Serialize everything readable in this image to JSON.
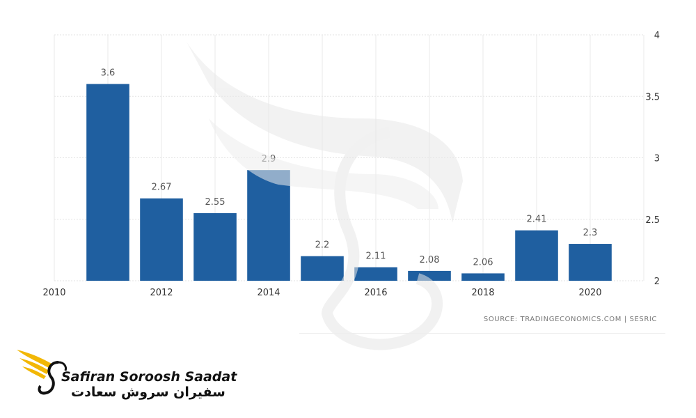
{
  "chart_data": {
    "type": "bar",
    "categories": [
      "2011",
      "2012",
      "2013",
      "2014",
      "2015",
      "2016",
      "2017",
      "2018",
      "2019",
      "2020"
    ],
    "values": [
      3.6,
      2.67,
      2.55,
      2.9,
      2.2,
      2.11,
      2.08,
      2.06,
      2.41,
      2.3
    ],
    "data_labels": [
      "3.6",
      "2.67",
      "2.55",
      "2.9",
      "2.2",
      "2.11",
      "2.08",
      "2.06",
      "2.41",
      "2.3"
    ],
    "x_tick_labels": [
      "2010",
      "2012",
      "2014",
      "2016",
      "2018",
      "2020"
    ],
    "y_tick_labels": [
      "2",
      "2.5",
      "3",
      "3.5",
      "4"
    ],
    "ylim": [
      2,
      4
    ],
    "xlim": [
      2010,
      2021
    ],
    "bar_color": "#1f5fa0",
    "grid": true,
    "y_axis_side": "right",
    "title": "",
    "xlabel": "",
    "ylabel": ""
  },
  "source": "SOURCE: TRADINGECONOMICS.COM | SESRIC",
  "brand": {
    "name_en": "Safiran Soroosh Saadat",
    "name_fa": "سفیران سروش سعادت",
    "logo_icon": "winged-s-logo",
    "accent": "#f2b705"
  }
}
